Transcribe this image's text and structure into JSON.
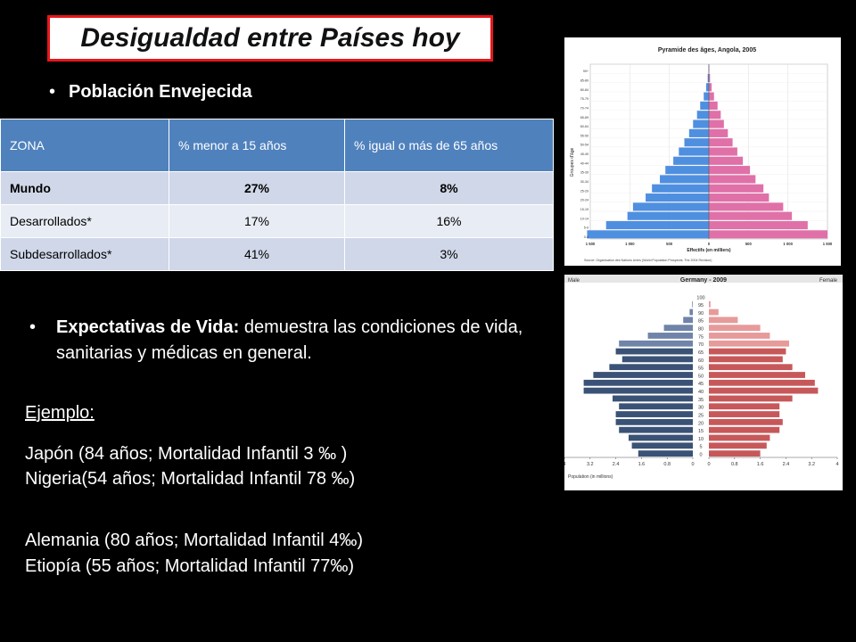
{
  "title": "Desigualdad entre Países hoy",
  "bullet1": "Población Envejecida",
  "table": {
    "headers": [
      "ZONA",
      "% menor a 15 años",
      "% igual o más de 65 años"
    ],
    "rows": [
      [
        "Mundo",
        "27%",
        "8%"
      ],
      [
        "Desarrollados*",
        "17%",
        "16%"
      ],
      [
        "Subdesarrollados*",
        "41%",
        "3%"
      ]
    ]
  },
  "bullet2": {
    "bold": "Expectativas de Vida:",
    "text": " demuestra las condiciones de vida, sanitarias y médicas en general."
  },
  "ejemplo": "Ejemplo:",
  "examples": [
    "Japón  (84 años; Mortalidad Infantil 3 ‰ )",
    "Nigeria(54 años; Mortalidad Infantil 78 ‰)",
    "Alemania (80 años; Mortalidad Infantil 4‰)",
    "Etiopía (55 años; Mortalidad Infantil 77‰)"
  ],
  "chart_data": [
    {
      "type": "bar",
      "title": "Pyramide des âges, Angola, 2005",
      "xlabel": "Effectifs (en milliers)",
      "ylabel": "Groupes d'âge",
      "source": "Source: Organisation des Nations Unies (World Population Prospects: The 2004 Revision)",
      "categories": [
        "0-4",
        "5-9",
        "10-14",
        "15-19",
        "20-24",
        "25-29",
        "30-34",
        "35-39",
        "40-44",
        "45-49",
        "50-54",
        "55-59",
        "60-64",
        "65-69",
        "70-74",
        "75-79",
        "80-84",
        "85-89",
        "90+"
      ],
      "xticks": [
        "1 500",
        "1 000",
        "500",
        "0",
        "500",
        "1 000",
        "1 500"
      ],
      "xlim": [
        -1500,
        1500
      ],
      "series": [
        {
          "name": "♂",
          "color": "#4f8fe0",
          "values": [
            1540,
            1300,
            1030,
            960,
            800,
            720,
            620,
            550,
            450,
            380,
            310,
            250,
            200,
            150,
            110,
            65,
            35,
            15,
            5
          ]
        },
        {
          "name": "♀",
          "color": "#e070a8",
          "values": [
            1500,
            1250,
            1050,
            940,
            760,
            690,
            590,
            520,
            430,
            360,
            300,
            240,
            190,
            150,
            110,
            65,
            35,
            15,
            5
          ]
        }
      ]
    },
    {
      "type": "bar",
      "title": "Germany - 2009",
      "left_label": "Male",
      "right_label": "Female",
      "xlabel": "Population (in millions)",
      "categories": [
        "0",
        "5",
        "10",
        "15",
        "20",
        "25",
        "30",
        "35",
        "40",
        "45",
        "50",
        "55",
        "60",
        "65",
        "70",
        "75",
        "80",
        "85",
        "90",
        "95",
        "100"
      ],
      "xticks": [
        "4",
        "3.2",
        "2.4",
        "1.6",
        "0.8",
        "0",
        "0",
        "0.8",
        "1.6",
        "2.4",
        "3.2",
        "4"
      ],
      "xlim": [
        0,
        4
      ],
      "series": [
        {
          "name": "Male",
          "color": "#3a5275",
          "values": [
            1.7,
            1.9,
            2.0,
            2.3,
            2.4,
            2.4,
            2.3,
            2.5,
            3.4,
            3.4,
            3.1,
            2.6,
            2.2,
            2.4,
            2.3,
            1.4,
            0.9,
            0.3,
            0.1,
            0.02,
            0
          ]
        },
        {
          "name": "Female",
          "color": "#c7585a",
          "values": [
            1.6,
            1.8,
            1.9,
            2.2,
            2.3,
            2.2,
            2.2,
            2.6,
            3.4,
            3.3,
            3.0,
            2.6,
            2.3,
            2.4,
            2.5,
            1.9,
            1.6,
            0.9,
            0.3,
            0.05,
            0
          ]
        }
      ]
    }
  ]
}
